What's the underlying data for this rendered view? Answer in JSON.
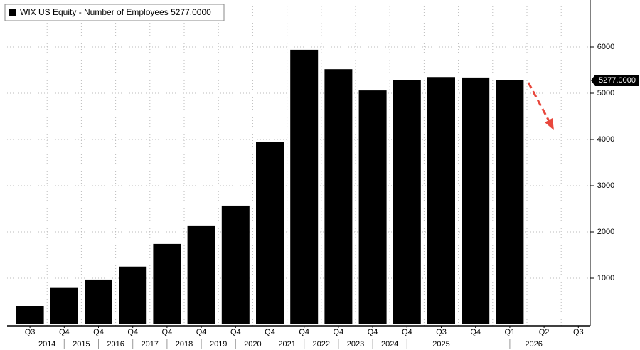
{
  "chart_data": {
    "type": "bar",
    "series": [
      {
        "name": "WIX US Equity - Number of Employees",
        "color": "#000000",
        "values": [
          400,
          790,
          970,
          1250,
          1740,
          2140,
          2570,
          3950,
          5940,
          5520,
          5060,
          5290,
          5350,
          5340,
          5277,
          null,
          null
        ],
        "value_labels": [
          null,
          null,
          null,
          null,
          null,
          null,
          null,
          null,
          null,
          null,
          null,
          null,
          null,
          null,
          "5277.0000",
          null,
          null
        ]
      }
    ],
    "categories": [
      "Q3",
      "Q4",
      "Q4",
      "Q4",
      "Q4",
      "Q4",
      "Q4",
      "Q4",
      "Q4",
      "Q4",
      "Q4",
      "Q4",
      "Q3",
      "Q4",
      "Q1",
      "Q2",
      "Q3"
    ],
    "years": [
      "2014",
      "2015",
      "2016",
      "2017",
      "2018",
      "2019",
      "2020",
      "2021",
      "2022",
      "2023",
      "2024",
      "2025",
      "2026"
    ],
    "ylim": [
      0,
      7000
    ],
    "yticks": [
      1000,
      2000,
      3000,
      4000,
      5000,
      6000
    ],
    "grid": true
  }
}
